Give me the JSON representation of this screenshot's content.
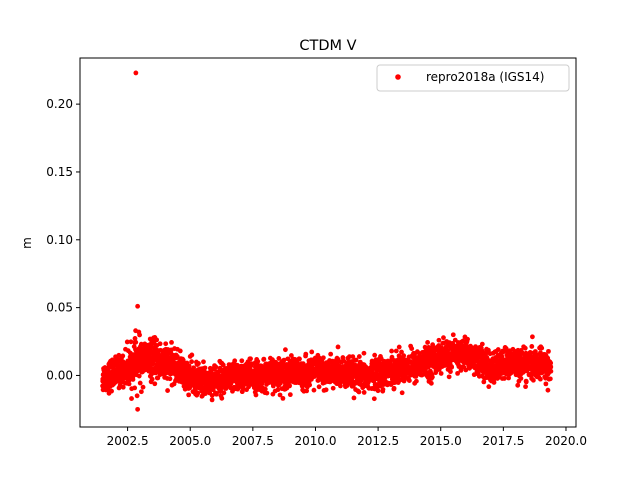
{
  "chart_data": {
    "type": "scatter",
    "title": "CTDM V",
    "xlabel": "",
    "ylabel": "m",
    "xlim": [
      2000.6,
      2020.4
    ],
    "ylim": [
      -0.038,
      0.234
    ],
    "xticks": [
      2002.5,
      2005.0,
      2007.5,
      2010.0,
      2012.5,
      2015.0,
      2017.5,
      2020.0
    ],
    "xtick_labels": [
      "2002.5",
      "2005.0",
      "2007.5",
      "2010.0",
      "2012.5",
      "2015.0",
      "2017.5",
      "2020.0"
    ],
    "yticks": [
      0.0,
      0.05,
      0.1,
      0.15,
      0.2
    ],
    "ytick_labels": [
      "0.00",
      "0.05",
      "0.10",
      "0.15",
      "0.20"
    ],
    "grid": false,
    "legend_position": "top-right",
    "color": "#ff0000",
    "series": [
      {
        "name": "repro2018a (IGS14)",
        "color": "#ff0000",
        "trend_x": [
          2001.5,
          2002.0,
          2002.5,
          2003.0,
          2003.5,
          2004.0,
          2004.5,
          2005.0,
          2005.5,
          2006.0,
          2006.5,
          2007.0,
          2007.5,
          2008.0,
          2008.5,
          2009.0,
          2009.5,
          2010.0,
          2010.5,
          2011.0,
          2011.5,
          2012.0,
          2012.5,
          2013.0,
          2013.5,
          2014.0,
          2014.5,
          2015.0,
          2015.5,
          2016.0,
          2016.5,
          2017.0,
          2017.5,
          2018.0,
          2018.5,
          2019.0,
          2019.4
        ],
        "trend_y": [
          -0.002,
          0.002,
          0.005,
          0.011,
          0.012,
          0.009,
          0.006,
          -0.002,
          -0.004,
          -0.003,
          -0.002,
          -0.001,
          0.0,
          0.0,
          0.001,
          0.002,
          0.001,
          0.003,
          0.002,
          0.002,
          0.0,
          -0.001,
          0.002,
          0.004,
          0.006,
          0.007,
          0.01,
          0.013,
          0.015,
          0.016,
          0.012,
          0.004,
          0.008,
          0.01,
          0.008,
          0.007,
          0.006
        ],
        "scatter_sd": 0.0055,
        "outliers_x": [
          2002.83,
          2002.9,
          2002.82,
          2002.95,
          2002.88,
          2003.05,
          2002.9,
          2005.0,
          2008.8,
          2010.9
        ],
        "outliers_y": [
          0.223,
          0.051,
          0.033,
          0.032,
          -0.015,
          -0.012,
          -0.025,
          0.014,
          0.019,
          0.021
        ]
      }
    ]
  }
}
